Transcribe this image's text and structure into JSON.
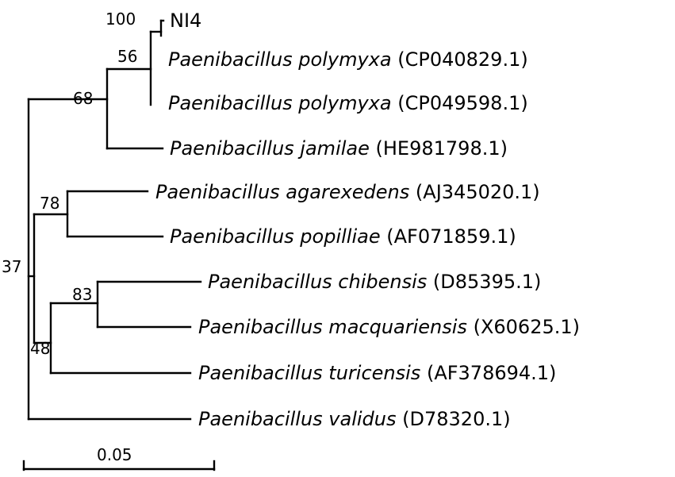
{
  "tree": {
    "taxa": [
      {
        "name": "NI4",
        "accession": ""
      },
      {
        "name": "Paenibacillus polymyxa",
        "accession": "(CP040829.1)"
      },
      {
        "name": "Paenibacillus polymyxa",
        "accession": "(CP049598.1)"
      },
      {
        "name": "Paenibacillus jamilae",
        "accession": "(HE981798.1)"
      },
      {
        "name": "Paenibacillus agarexedens",
        "accession": "(AJ345020.1)"
      },
      {
        "name": "Paenibacillus popilliae",
        "accession": "(AF071859.1)"
      },
      {
        "name": "Paenibacillus chibensis",
        "accession": "(D85395.1)"
      },
      {
        "name": "Paenibacillus macquariensis",
        "accession": "(X60625.1)"
      },
      {
        "name": "Paenibacillus turicensis",
        "accession": "(AF378694.1)"
      },
      {
        "name": "Paenibacillus validus",
        "accession": "(D78320.1)"
      }
    ],
    "bootstrap": {
      "ni4_polymyxa1": "100",
      "polymyxa_pair": "56",
      "polymyxa_jamilae": "68",
      "agarexedens_popilliae": "78",
      "chibensis_macquariensis": "83",
      "chibensis_turicensis": "48",
      "root": "37"
    },
    "scale": {
      "label": "0.05"
    }
  }
}
